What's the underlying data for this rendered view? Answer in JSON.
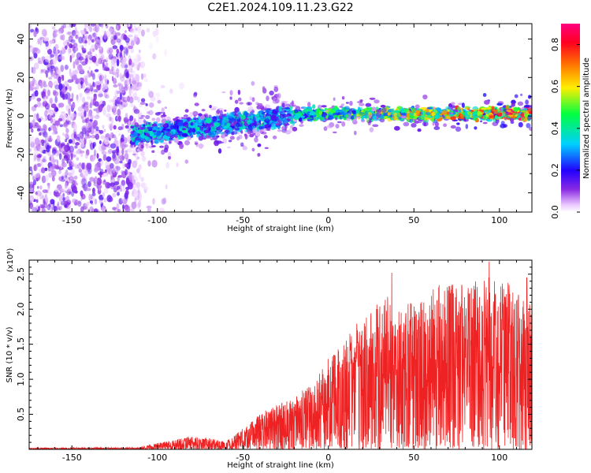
{
  "figure_title": "C2E1.2024.109.11.23.G22",
  "chart_data": [
    {
      "type": "heatmap",
      "title": "C2E1.2024.109.11.23.G22",
      "xlabel": "Height of straight line (km)",
      "ylabel": "Frequency (Hz)",
      "xlim": [
        -175,
        119
      ],
      "ylim": [
        -50,
        48
      ],
      "x_ticks": [
        -150,
        -100,
        -50,
        0,
        50,
        100
      ],
      "y_ticks": [
        -40,
        -20,
        0,
        20,
        40
      ],
      "colorbar": {
        "label": "Normalized spectral amplitude",
        "range": [
          0.0,
          0.9
        ],
        "ticks": [
          0.0,
          0.2,
          0.4,
          0.6,
          0.8
        ],
        "colormap": "rainbow (white-violet-blue-cyan-green-yellow-red-magenta)"
      },
      "regions": [
        {
          "name": "broadband noise",
          "x_range": [
            -175,
            -110
          ],
          "freq_range": [
            -50,
            48
          ],
          "amplitude": 0.1
        },
        {
          "name": "emerging line",
          "x_range": [
            -115,
            -20
          ],
          "freq_center_start": -10,
          "freq_center_end": 0,
          "freq_halfwidth": 8,
          "amplitude": 0.35
        },
        {
          "name": "signal line",
          "x_range": [
            -20,
            119
          ],
          "freq_center": 1,
          "freq_halfwidth": 4,
          "amplitude_start": 0.4,
          "amplitude_end": 0.8
        }
      ]
    },
    {
      "type": "line",
      "title": "",
      "xlabel": "Height of straight line (km)",
      "ylabel": "SNR (10 * v/v)",
      "y_multiplier_label": "(x10⁴)",
      "xlim": [
        -175,
        119
      ],
      "ylim": [
        0,
        2.7
      ],
      "x_ticks": [
        -150,
        -100,
        -50,
        0,
        50,
        100
      ],
      "y_ticks": [
        0.5,
        1.0,
        1.5,
        2.0,
        2.5
      ],
      "y_tick_labels": [
        "0.5",
        "1.0",
        "1.5",
        "2.0",
        "2.5"
      ],
      "series": [
        {
          "name": "SNR",
          "color": "#ee2222",
          "envelope": {
            "x": [
              -175,
              -110,
              -100,
              -90,
              -80,
              -70,
              -60,
              -50,
              -40,
              -30,
              -20,
              -10,
              0,
              10,
              20,
              30,
              40,
              50,
              60,
              70,
              80,
              90,
              100,
              110,
              119
            ],
            "upper": [
              0.02,
              0.03,
              0.09,
              0.14,
              0.19,
              0.16,
              0.11,
              0.3,
              0.52,
              0.65,
              0.75,
              0.95,
              1.3,
              1.6,
              1.9,
              2.2,
              2.2,
              2.1,
              2.3,
              2.4,
              2.3,
              2.5,
              2.4,
              2.4,
              2.2
            ]
          },
          "peaks": [
            {
              "x": 37,
              "y": 2.52
            },
            {
              "x": 94,
              "y": 2.68
            },
            {
              "x": 116,
              "y": 2.45
            },
            {
              "x": 78,
              "y": 2.35
            },
            {
              "x": 71,
              "y": 2.33
            }
          ]
        }
      ]
    }
  ]
}
